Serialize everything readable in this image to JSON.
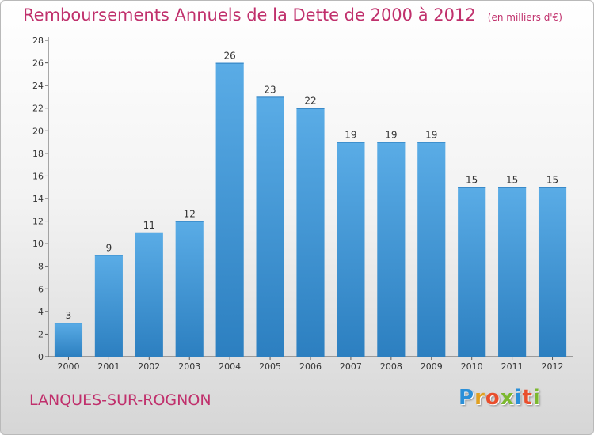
{
  "chart_data": {
    "type": "bar",
    "title": "Remboursements Annuels de la Dette de 2000 à 2012",
    "unit_note": "(en milliers d'€)",
    "categories": [
      "2000",
      "2001",
      "2002",
      "2003",
      "2004",
      "2005",
      "2006",
      "2007",
      "2008",
      "2009",
      "2010",
      "2011",
      "2012"
    ],
    "values": [
      3,
      9,
      11,
      12,
      26,
      23,
      22,
      19,
      19,
      19,
      15,
      15,
      15
    ],
    "ylim": [
      0,
      28
    ],
    "yticks": [
      0,
      2,
      4,
      6,
      8,
      10,
      12,
      14,
      16,
      18,
      20,
      22,
      24,
      26,
      28
    ],
    "grid": false,
    "colors": {
      "bar_light": "#5aace6",
      "bar_dark": "#2c7fc0",
      "title": "#c0306c"
    }
  },
  "commune": "LANQUES-SUR-ROGNON",
  "brand": {
    "letters": [
      {
        "char": "P",
        "color": "#2a8fd8"
      },
      {
        "char": "r",
        "color": "#e0a020"
      },
      {
        "char": "o",
        "color": "#e94e2c"
      },
      {
        "char": "x",
        "color": "#7cb82f"
      },
      {
        "char": "i",
        "color": "#2a8fd8"
      },
      {
        "char": "t",
        "color": "#e94e2c"
      },
      {
        "char": "i",
        "color": "#7cb82f"
      }
    ]
  }
}
